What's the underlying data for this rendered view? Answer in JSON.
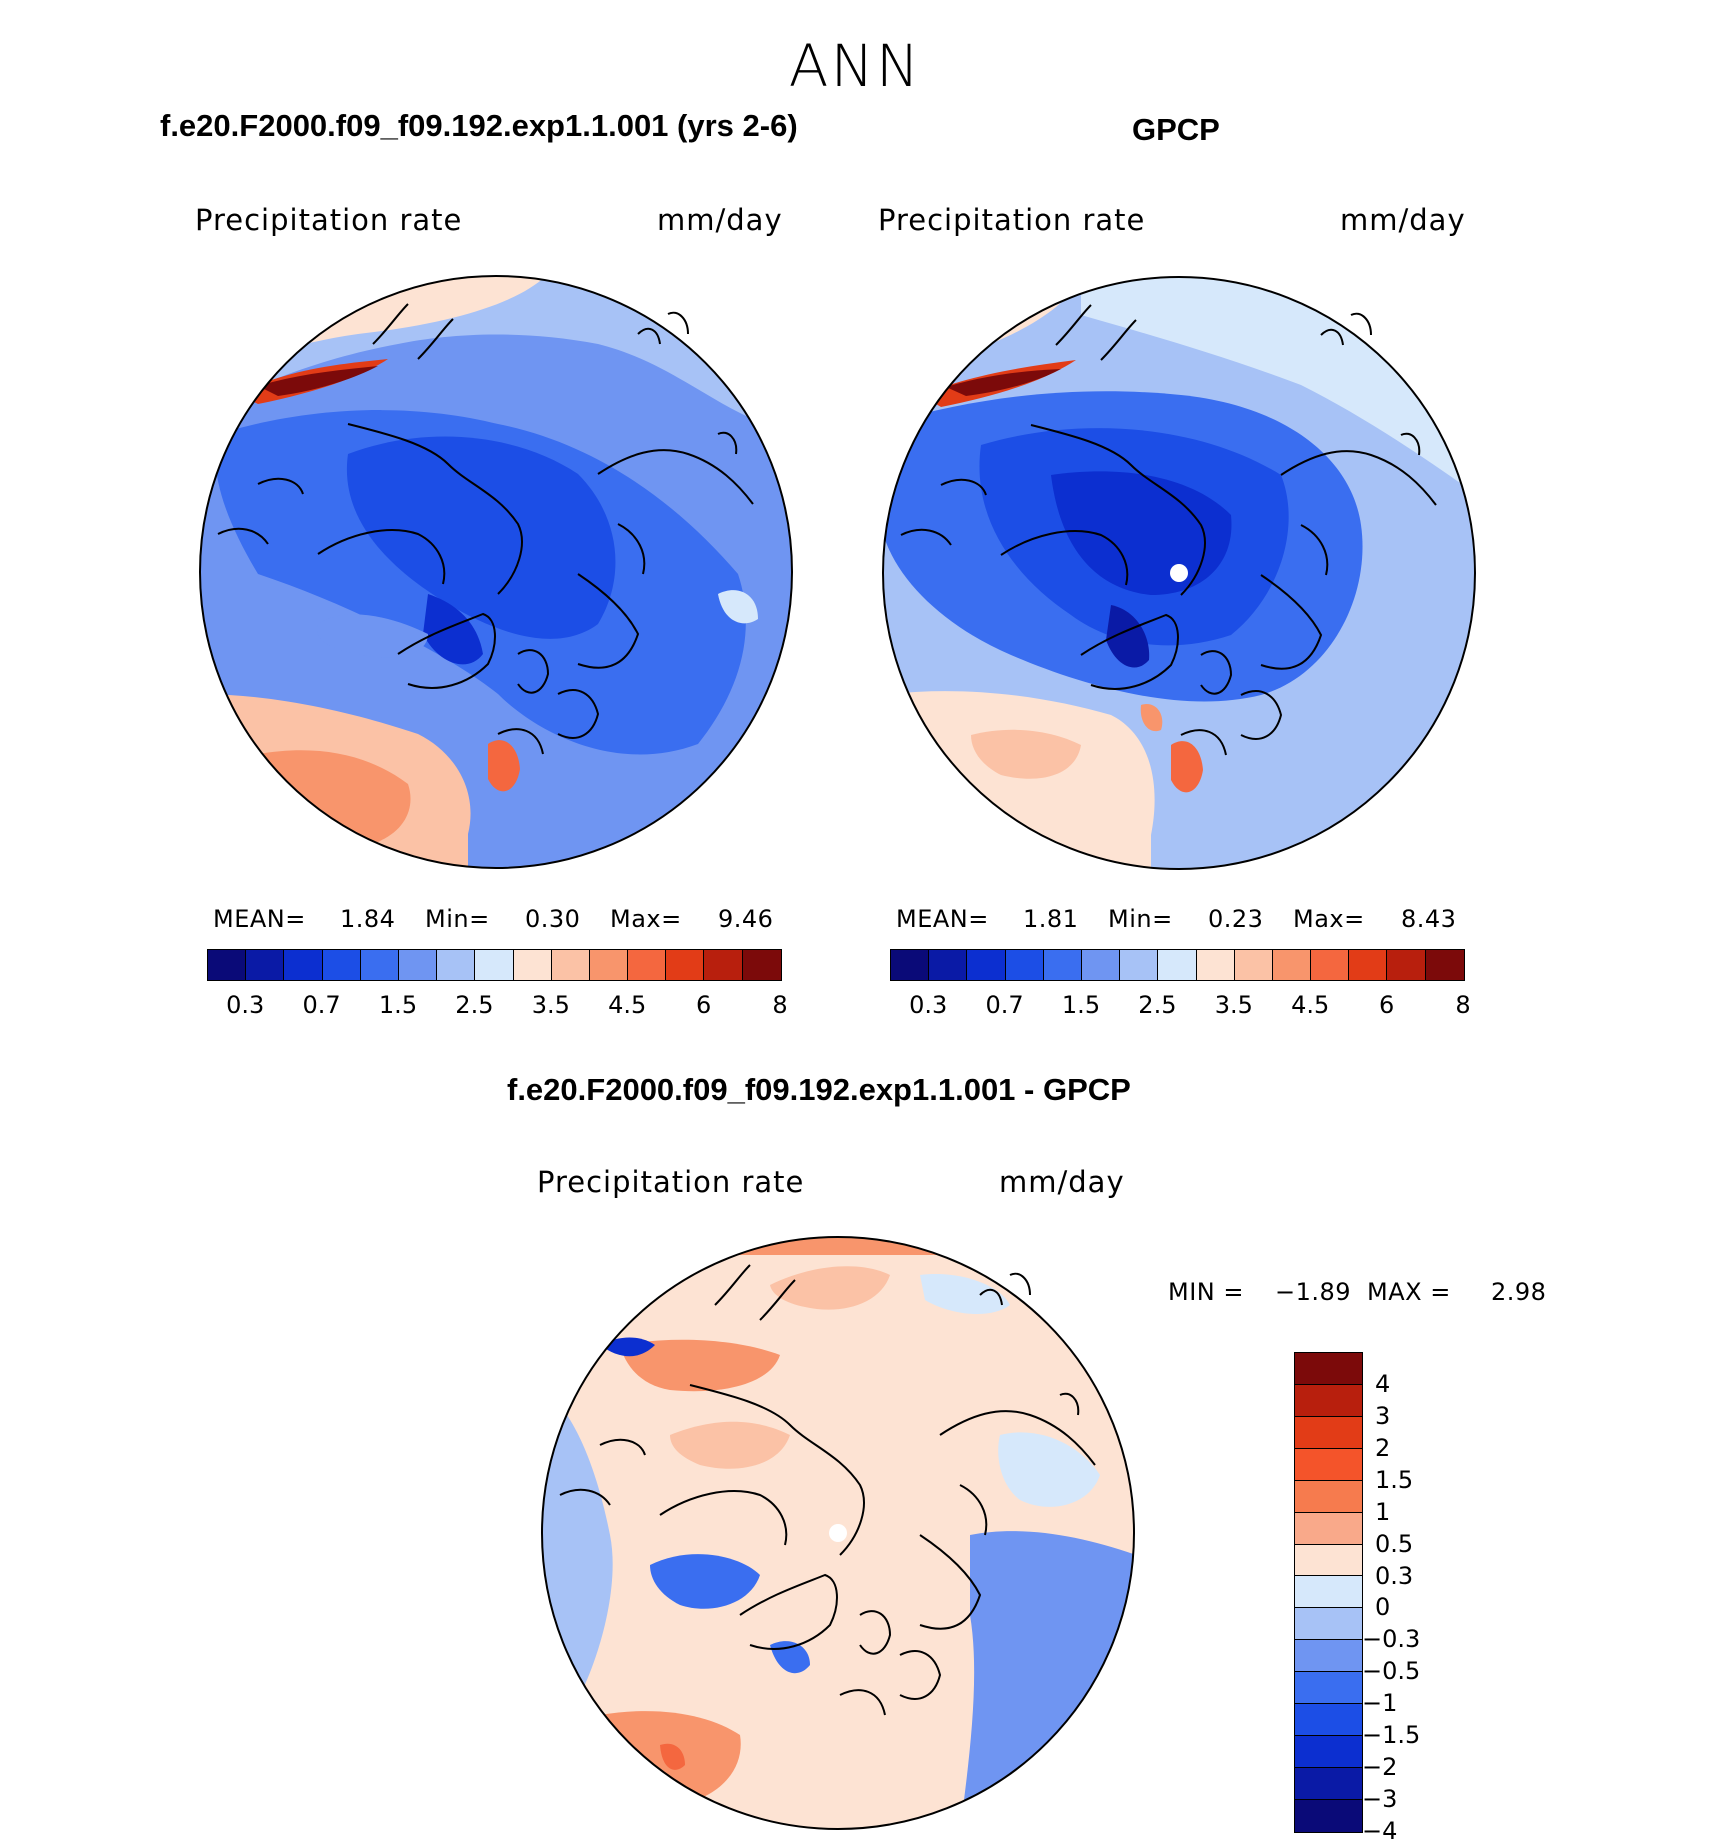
{
  "figure_title": "ANN",
  "panels": {
    "model": {
      "title": "f.e20.F2000.f09_f09.192.exp1.1.001 (yrs 2-6)",
      "variable": "Precipitation rate",
      "units": "mm/day",
      "mean_label": "MEAN=",
      "mean": "1.84",
      "min_label": "Min=",
      "min": "0.30",
      "max_label": "Max=",
      "max": "9.46"
    },
    "obs": {
      "title": "GPCP",
      "variable": "Precipitation rate",
      "units": "mm/day",
      "mean_label": "MEAN=",
      "mean": "1.81",
      "min_label": "Min=",
      "min": "0.23",
      "max_label": "Max=",
      "max": "8.43"
    },
    "diff": {
      "title": "f.e20.F2000.f09_f09.192.exp1.1.001 - GPCP",
      "variable": "Precipitation rate",
      "units": "mm/day",
      "min_label": "MIN =",
      "min": "−1.89",
      "max_label": "MAX =",
      "max": "2.98"
    }
  },
  "colorbar_abs": {
    "colors": [
      "#0a0a78",
      "#0a1aa6",
      "#0c2fd0",
      "#1c4ee6",
      "#3a6ef0",
      "#6f95f2",
      "#a7c2f6",
      "#d6e8fb",
      "#fde3d3",
      "#fbc2a6",
      "#f8956c",
      "#f4673f",
      "#e23c17",
      "#b81f0d",
      "#7c0a0a"
    ],
    "labels": [
      "0.3",
      "0.7",
      "1.5",
      "2.5",
      "3.5",
      "4.5",
      "6",
      "8"
    ]
  },
  "colorbar_diff": {
    "colors": [
      "#7c0a0a",
      "#b81f0d",
      "#e23c17",
      "#f4542a",
      "#f67b4e",
      "#f9a98a",
      "#fde3d3",
      "#d6e8fb",
      "#a7c2f6",
      "#6f95f2",
      "#3a6ef0",
      "#1c4ee6",
      "#0c2fd0",
      "#0a1aa6",
      "#0a0a78"
    ],
    "labels": [
      "4",
      "3",
      "2",
      "1.5",
      "1",
      "0.5",
      "0.3",
      "0",
      "−0.3",
      "−0.5",
      "−1",
      "−1.5",
      "−2",
      "−3",
      "−4"
    ]
  },
  "chart_data": [
    {
      "type": "heatmap",
      "title": "f.e20.F2000.f09_f09.192.exp1.1.001 (yrs 2-6)",
      "projection": "north polar stereographic",
      "variable": "Precipitation rate",
      "units": "mm/day",
      "levels": [
        0.2,
        0.3,
        0.5,
        0.7,
        1,
        1.5,
        2,
        2.5,
        3,
        3.5,
        4,
        4.5,
        5,
        6,
        7,
        8
      ],
      "mean": 1.84,
      "min": 0.3,
      "max": 9.46
    },
    {
      "type": "heatmap",
      "title": "GPCP",
      "projection": "north polar stereographic",
      "variable": "Precipitation rate",
      "units": "mm/day",
      "levels": [
        0.2,
        0.3,
        0.5,
        0.7,
        1,
        1.5,
        2,
        2.5,
        3,
        3.5,
        4,
        4.5,
        5,
        6,
        7,
        8
      ],
      "mean": 1.81,
      "min": 0.23,
      "max": 8.43
    },
    {
      "type": "heatmap",
      "title": "f.e20.F2000.f09_f09.192.exp1.1.001 - GPCP",
      "projection": "north polar stereographic",
      "variable": "Precipitation rate",
      "units": "mm/day",
      "levels": [
        -4,
        -3,
        -2,
        -1.5,
        -1,
        -0.5,
        -0.3,
        0,
        0.3,
        0.5,
        1,
        1.5,
        2,
        3,
        4
      ],
      "min": -1.89,
      "max": 2.98
    }
  ]
}
